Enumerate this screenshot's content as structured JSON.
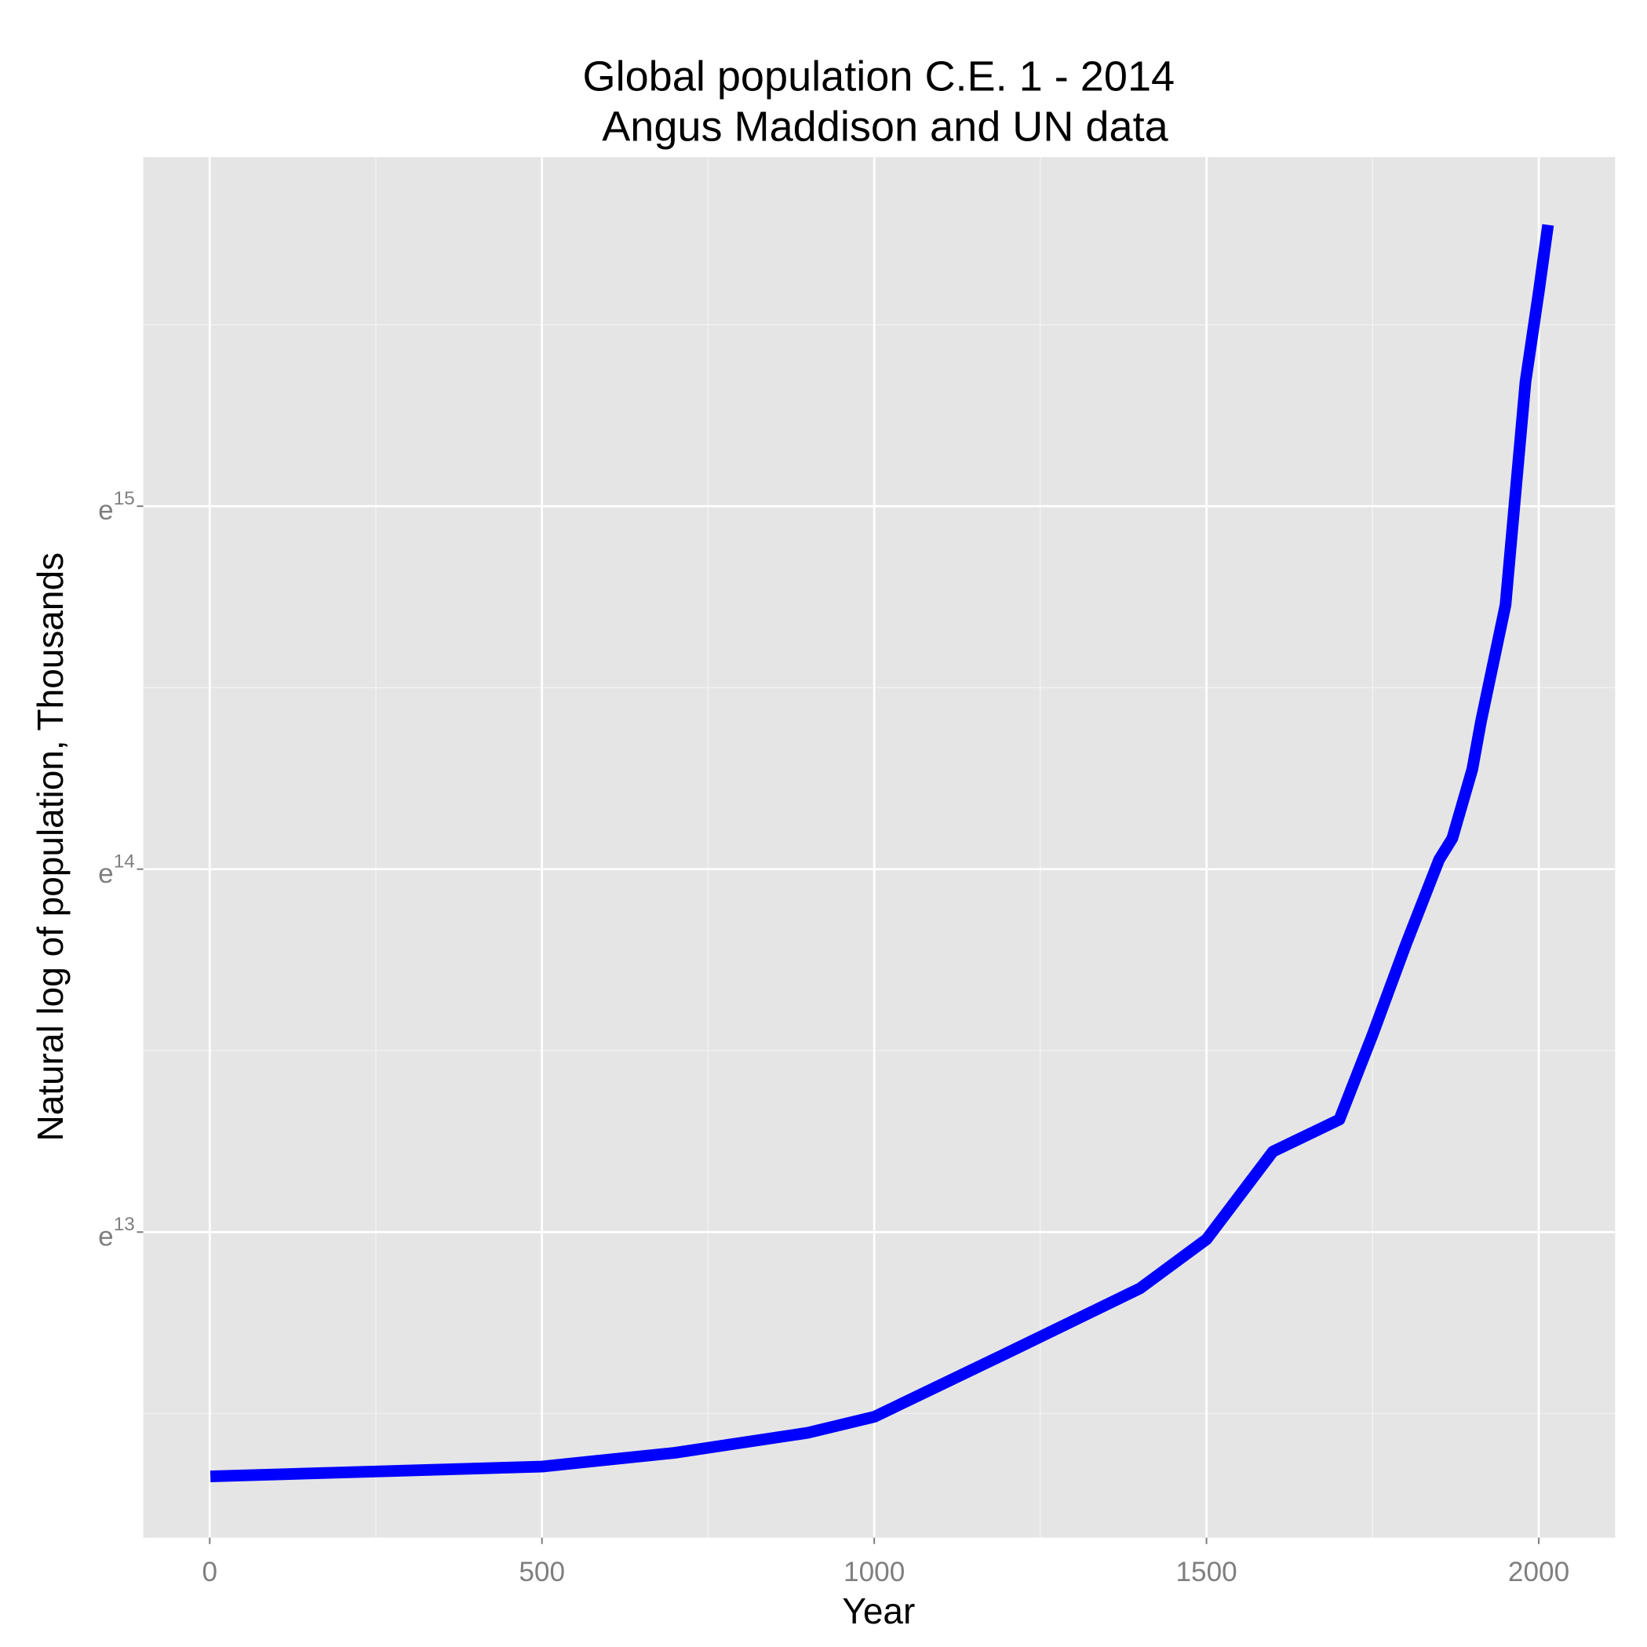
{
  "chart_data": {
    "type": "line",
    "title": "Global population C.E. 1 - 2014",
    "subtitle": "Angus Maddison and UN data",
    "x_label": "Year",
    "y_label": "Natural log of population, Thousands",
    "series": [
      {
        "color": "#0000ff",
        "x": [
          1,
          500,
          700,
          900,
          1000,
          1200,
          1400,
          1500,
          1600,
          1700,
          1750,
          1800,
          1850,
          1870,
          1900,
          1913,
          1950,
          1960,
          1980,
          2000,
          2014
        ],
        "values": [
          12.327,
          12.354,
          12.392,
          12.447,
          12.491,
          12.667,
          12.845,
          12.98,
          13.222,
          13.31,
          13.544,
          13.792,
          14.026,
          14.085,
          14.275,
          14.406,
          14.728,
          14.933,
          15.342,
          15.59,
          15.775
        ]
      }
    ],
    "xlim": [
      -100,
      2115
    ],
    "xticks": [
      0,
      500,
      1000,
      1500,
      2000
    ],
    "ylim": [
      12.158,
      15.962
    ],
    "yticks": [
      {
        "value": 13,
        "label": "e13"
      },
      {
        "value": 14,
        "label": "e14"
      },
      {
        "value": 15,
        "label": "e15"
      }
    ],
    "grid": true
  }
}
